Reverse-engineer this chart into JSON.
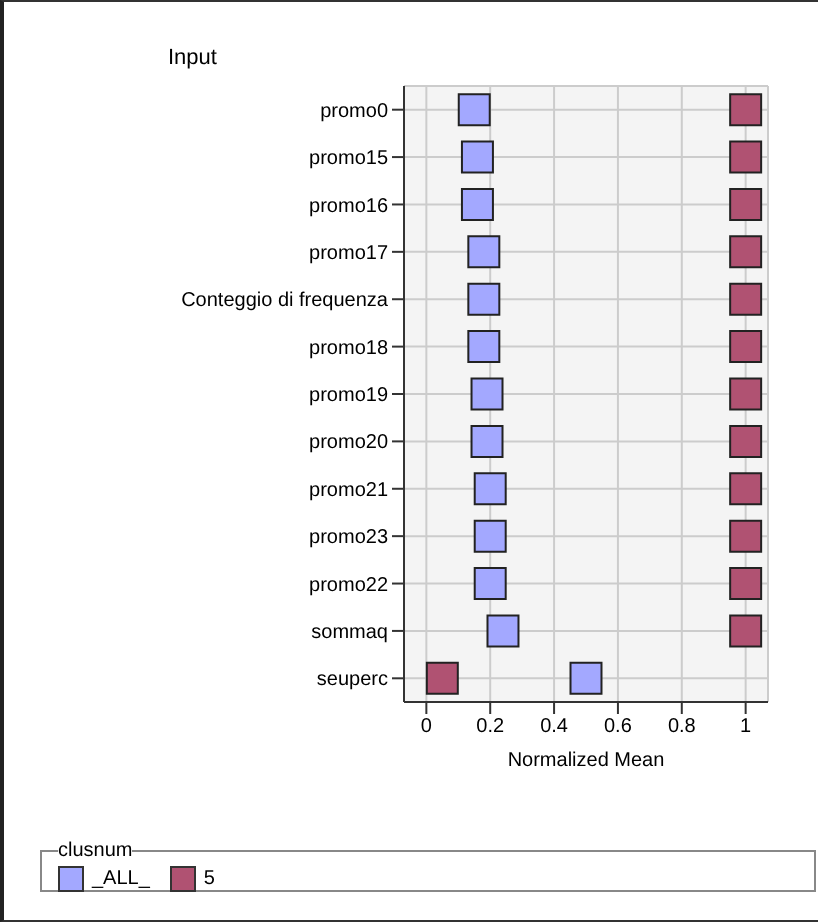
{
  "chart_data": {
    "type": "scatter",
    "title": "Input",
    "xlabel": "Normalized Mean",
    "legend_title": "clusnum",
    "orientation": "horizontal",
    "categories": [
      "promo0",
      "promo15",
      "promo16",
      "promo17",
      "Conteggio di frequenza",
      "promo18",
      "promo19",
      "promo20",
      "promo21",
      "promo23",
      "promo22",
      "sommaq",
      "seuperc"
    ],
    "series": [
      {
        "name": "_ALL_",
        "color": "#a3a8ff",
        "values": [
          0.15,
          0.16,
          0.16,
          0.18,
          0.18,
          0.18,
          0.19,
          0.19,
          0.2,
          0.2,
          0.2,
          0.24,
          0.5
        ]
      },
      {
        "name": "5",
        "color": "#b05272",
        "values": [
          1,
          1,
          1,
          1,
          1,
          1,
          1,
          1,
          1,
          1,
          1,
          1,
          0.05
        ]
      }
    ],
    "xlim": [
      -0.07,
      1.07
    ],
    "xticks": [
      0,
      0.2,
      0.4,
      0.6,
      0.8,
      1
    ],
    "grid": true,
    "legend": "bottom",
    "marker": "square"
  }
}
